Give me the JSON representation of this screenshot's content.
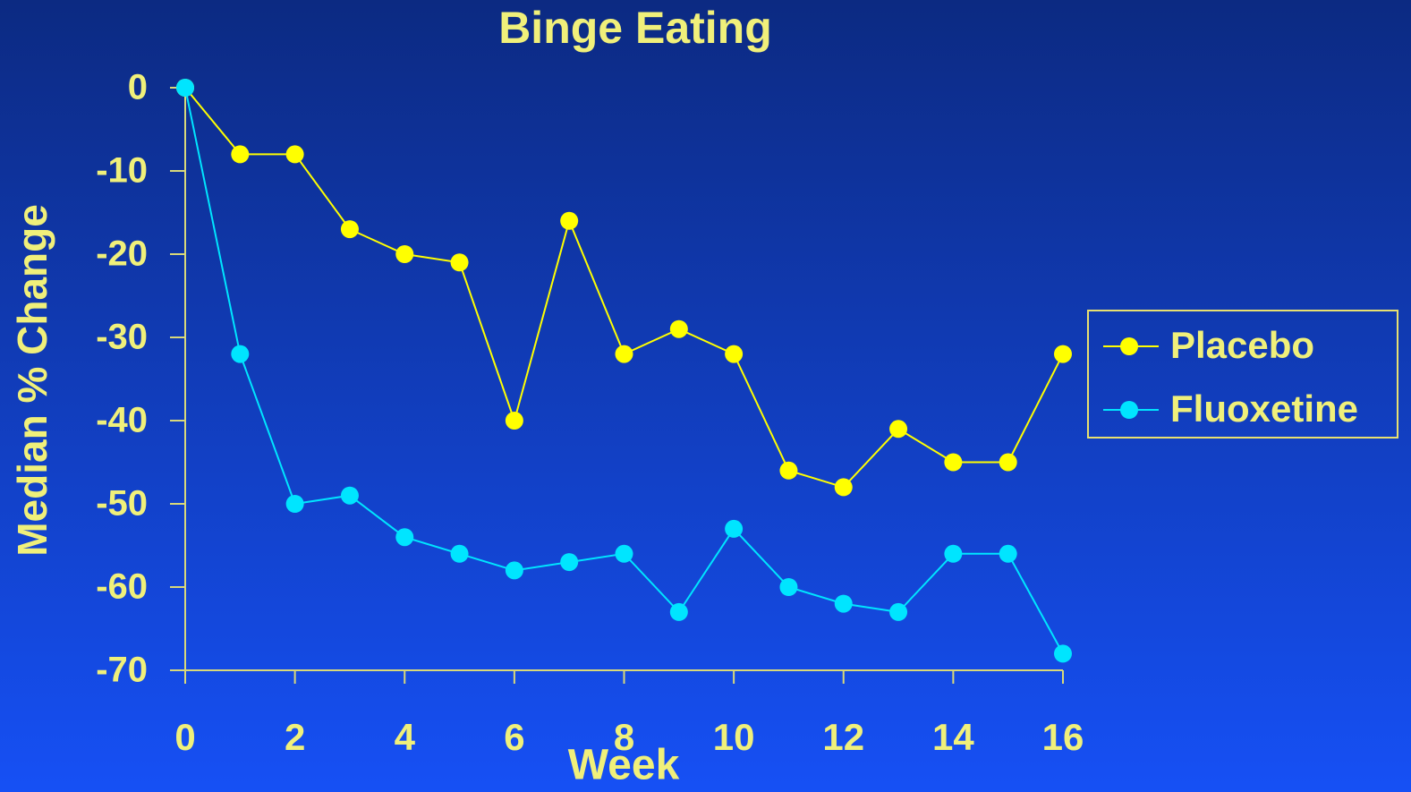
{
  "chart_data": {
    "type": "line",
    "title": "Binge Eating",
    "x_label": "Week",
    "y_label": "Median % Change",
    "x": [
      0,
      1,
      2,
      3,
      4,
      5,
      6,
      7,
      8,
      9,
      10,
      11,
      12,
      13,
      14,
      15,
      16
    ],
    "series": [
      {
        "name": "Placebo",
        "color": "#ffff00",
        "values": [
          0,
          -8,
          -8,
          -17,
          -20,
          -21,
          -40,
          -16,
          -32,
          -29,
          -32,
          -46,
          -48,
          -41,
          -45,
          -45,
          -32
        ]
      },
      {
        "name": "Fluoxetine",
        "color": "#00e5ff",
        "values": [
          0,
          -32,
          -50,
          -49,
          -54,
          -56,
          -58,
          -57,
          -56,
          -63,
          -53,
          -60,
          -62,
          -63,
          -56,
          -56,
          -68
        ]
      }
    ],
    "xlim": [
      0,
      16
    ],
    "xticks": [
      0,
      2,
      4,
      6,
      8,
      10,
      12,
      14,
      16
    ],
    "ylim": [
      -70,
      0
    ],
    "yticks": [
      0,
      -10,
      -20,
      -30,
      -40,
      -50,
      -60,
      -70
    ],
    "grid": false,
    "legend_position": "right"
  }
}
